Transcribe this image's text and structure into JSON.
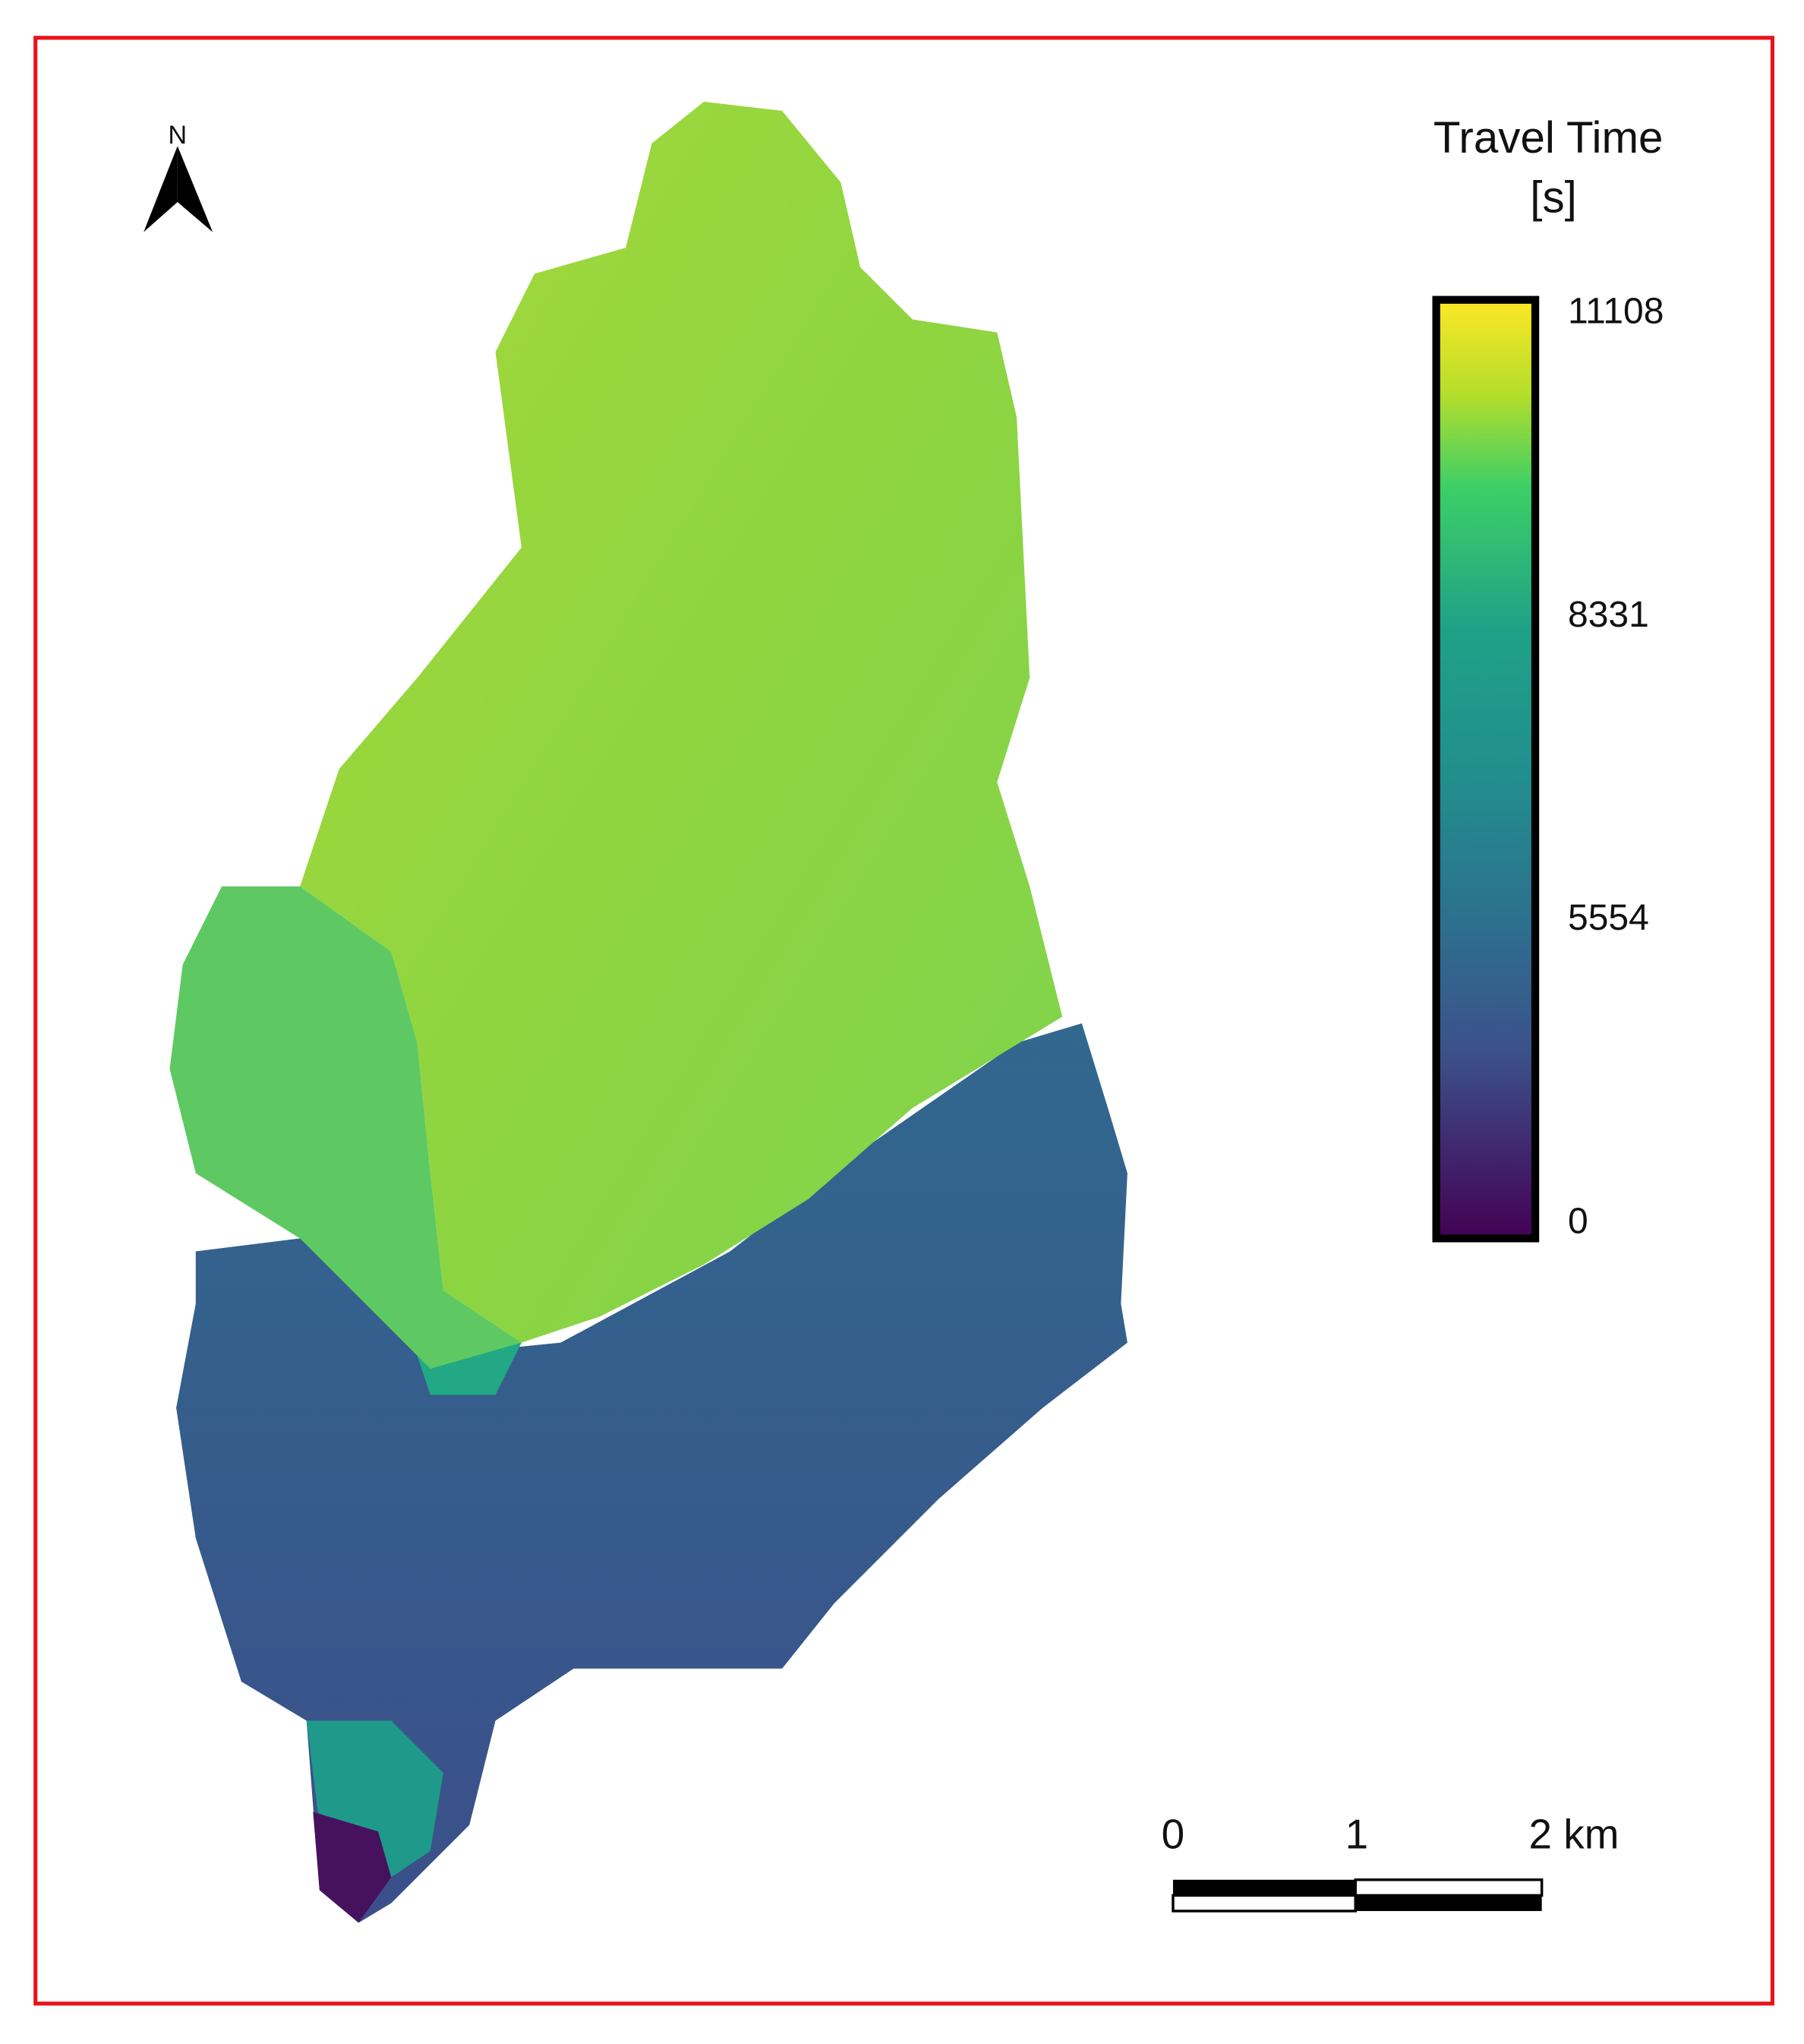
{
  "north_arrow": {
    "label": "N"
  },
  "legend": {
    "title": "Travel Time",
    "unit": "[s]",
    "ticks": [
      11108,
      8331,
      5554,
      0
    ]
  },
  "scale_bar": {
    "labels": [
      "0",
      "1",
      "2 km"
    ]
  }
}
